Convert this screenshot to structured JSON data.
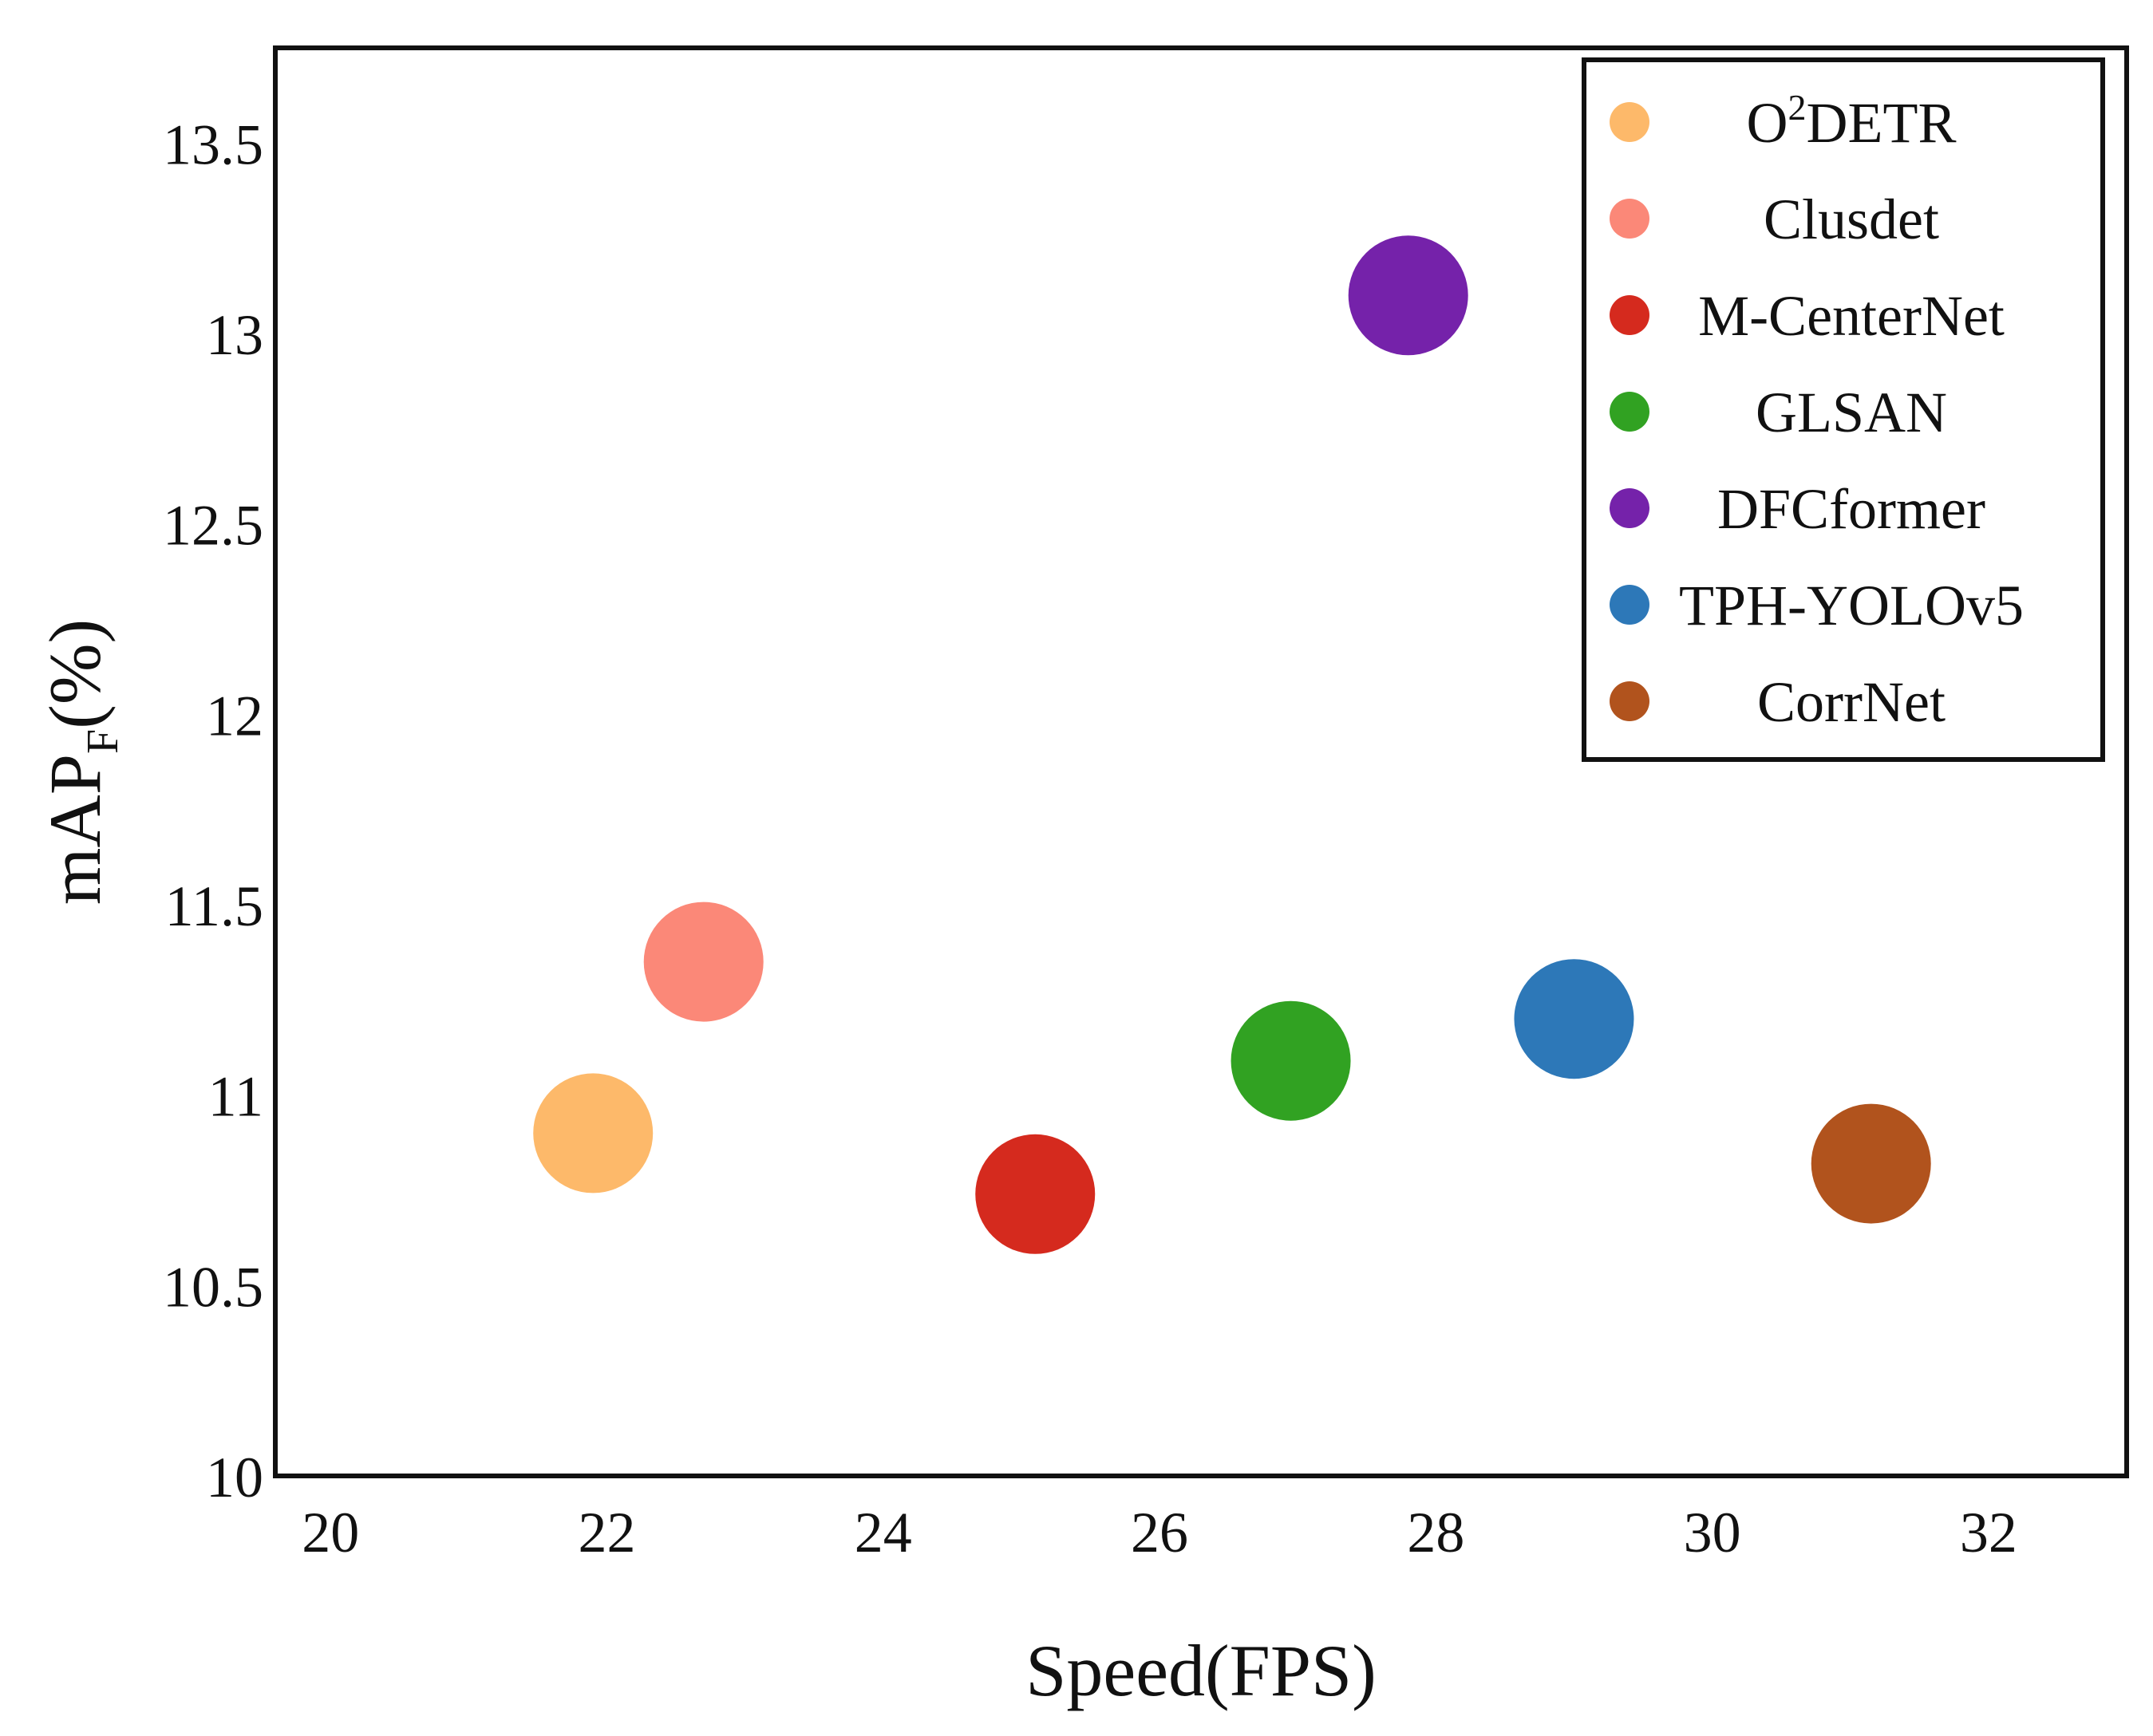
{
  "chart_data": {
    "type": "scatter",
    "title": "",
    "xlabel": "Speed(FPS)",
    "ylabel": {
      "base": "mAP",
      "subscript": "F",
      "suffix": "(%)"
    },
    "xlim": [
      19.6,
      33.0
    ],
    "ylim": [
      10.0,
      13.75
    ],
    "xticks": [
      20,
      22,
      24,
      26,
      28,
      30,
      32
    ],
    "xtick_labels": [
      "20",
      "22",
      "24",
      "26",
      "28",
      "30",
      "32"
    ],
    "yticks": [
      10,
      10.5,
      11,
      11.5,
      12,
      12.5,
      13,
      13.5
    ],
    "ytick_labels": [
      "10",
      "10.5",
      "11",
      "11.5",
      "12",
      "12.5",
      "13",
      "13.5"
    ],
    "grid": false,
    "legend_position": "top-right",
    "series": [
      {
        "name": "O²DETR",
        "x": 21.9,
        "y": 10.9,
        "color": "#FDB96A"
      },
      {
        "name": "Clusdet",
        "x": 22.7,
        "y": 11.35,
        "color": "#FB8878"
      },
      {
        "name": "M-CenterNet",
        "x": 25.1,
        "y": 10.74,
        "color": "#D52A1E"
      },
      {
        "name": "GLSAN",
        "x": 26.95,
        "y": 11.09,
        "color": "#31A222"
      },
      {
        "name": "DFCformer",
        "x": 27.8,
        "y": 13.1,
        "color": "#7522AA"
      },
      {
        "name": "TPH-YOLOv5",
        "x": 29.0,
        "y": 11.2,
        "color": "#2D78B8"
      },
      {
        "name": "CorrNet",
        "x": 31.15,
        "y": 10.82,
        "color": "#B1531D"
      }
    ],
    "legend_entries": [
      {
        "label_base": "O",
        "label_sup": "2",
        "label_rest": "DETR",
        "color": "#FDB96A"
      },
      {
        "label_base": "Clusdet",
        "label_sup": "",
        "label_rest": "",
        "color": "#FB8878"
      },
      {
        "label_base": "M-CenterNet",
        "label_sup": "",
        "label_rest": "",
        "color": "#D52A1E"
      },
      {
        "label_base": "GLSAN",
        "label_sup": "",
        "label_rest": "",
        "color": "#31A222"
      },
      {
        "label_base": "DFCformer",
        "label_sup": "",
        "label_rest": "",
        "color": "#7522AA"
      },
      {
        "label_base": "TPH-YOLOv5",
        "label_sup": "",
        "label_rest": "",
        "color": "#2D78B8"
      },
      {
        "label_base": "CorrNet",
        "label_sup": "",
        "label_rest": "",
        "color": "#B1531D"
      }
    ]
  }
}
